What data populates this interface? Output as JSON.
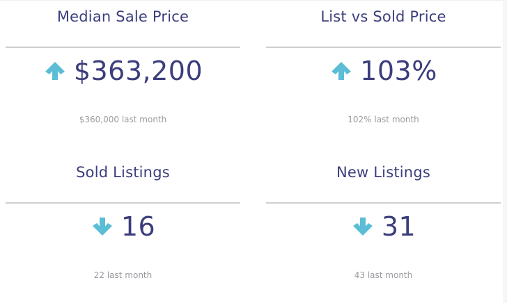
{
  "colors": {
    "title": "#3b3d7c",
    "value": "#3b3d7c",
    "arrow": "#5bbdd6",
    "subtext": "#9a9aa0",
    "divider": "#cfcfd3"
  },
  "cards": [
    {
      "title": "Median Sale Price",
      "value": "$363,200",
      "trend_icon": "arrow-up-icon",
      "previous": "$360,000 last month"
    },
    {
      "title": "List vs Sold Price",
      "value": "103%",
      "trend_icon": "arrow-up-icon",
      "previous": "102% last month"
    },
    {
      "title": "Sold Listings",
      "value": "16",
      "trend_icon": "arrow-down-icon",
      "previous": "22 last month"
    },
    {
      "title": "New Listings",
      "value": "31",
      "trend_icon": "arrow-down-icon",
      "previous": "43 last month"
    }
  ]
}
